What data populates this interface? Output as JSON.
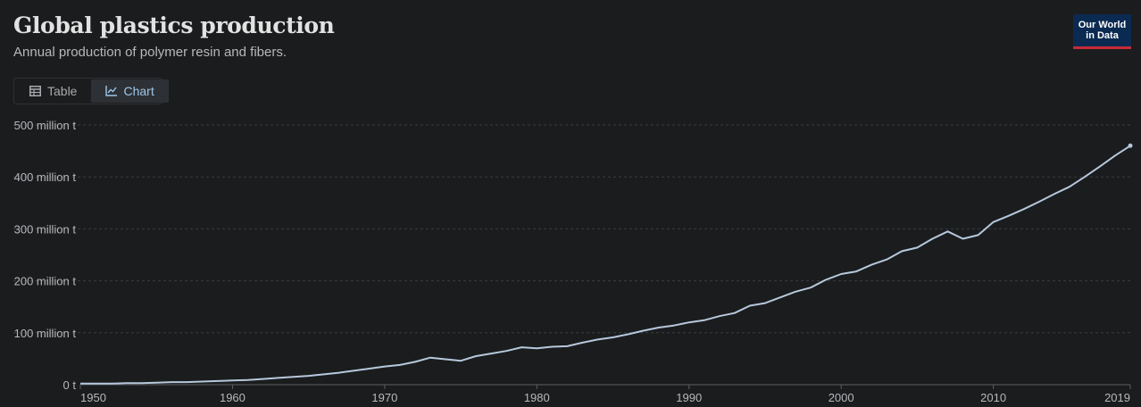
{
  "header": {
    "title": "Global plastics production",
    "subtitle": "Annual production of polymer resin and fibers.",
    "logo_line1": "Our World",
    "logo_line2": "in Data"
  },
  "tabs": [
    {
      "label": "Table",
      "icon": "table-icon",
      "active": false
    },
    {
      "label": "Chart",
      "icon": "line-chart-icon",
      "active": true
    }
  ],
  "colors": {
    "background": "#1b1c1e",
    "line": "#b6c8dc",
    "grid": "#3a3d41",
    "axis_text": "#b6b8bb",
    "logo_bg": "#0b2a52",
    "logo_accent": "#c62b37"
  },
  "chart_data": {
    "type": "line",
    "title": "Global plastics production",
    "subtitle": "Annual production of polymer resin and fibers.",
    "ylim": [
      0,
      500
    ],
    "yticks": [
      0,
      100,
      200,
      300,
      400,
      500
    ],
    "ytick_labels": [
      "0 t",
      "100 million t",
      "200 million t",
      "300 million t",
      "400 million t",
      "500 million t"
    ],
    "xlim": [
      1950,
      2019
    ],
    "xtick_labels": [
      "1950",
      "1960",
      "1970",
      "1980",
      "1990",
      "2000",
      "2010",
      "2019"
    ],
    "grid": true,
    "series": [
      {
        "x": [
          1950,
          1951,
          1952,
          1953,
          1954,
          1955,
          1956,
          1957,
          1958,
          1959,
          1960,
          1961,
          1962,
          1963,
          1964,
          1965,
          1966,
          1967,
          1968,
          1969,
          1970,
          1971,
          1972,
          1973,
          1974,
          1975,
          1976,
          1977,
          1978,
          1979,
          1980,
          1981,
          1982,
          1983,
          1984,
          1985,
          1986,
          1987,
          1988,
          1989,
          1990,
          1991,
          1992,
          1993,
          1994,
          1995,
          1996,
          1997,
          1998,
          1999,
          2000,
          2001,
          2002,
          2003,
          2004,
          2005,
          2006,
          2007,
          2008,
          2009,
          2010,
          2011,
          2012,
          2013,
          2014,
          2015,
          2016,
          2017,
          2018,
          2019
        ],
        "values": [
          2,
          2,
          2,
          3,
          3,
          4,
          5,
          5,
          6,
          7,
          8,
          9,
          11,
          13,
          15,
          17,
          20,
          23,
          27,
          31,
          35,
          38,
          44,
          52,
          49,
          46,
          55,
          60,
          65,
          72,
          70,
          73,
          74,
          81,
          87,
          91,
          97,
          104,
          110,
          114,
          120,
          124,
          132,
          138,
          152,
          157,
          168,
          179,
          187,
          202,
          213,
          218,
          231,
          241,
          257,
          264,
          281,
          295,
          281,
          288,
          313,
          325,
          338,
          352,
          367,
          381,
          400,
          420,
          441,
          460
        ]
      }
    ]
  }
}
